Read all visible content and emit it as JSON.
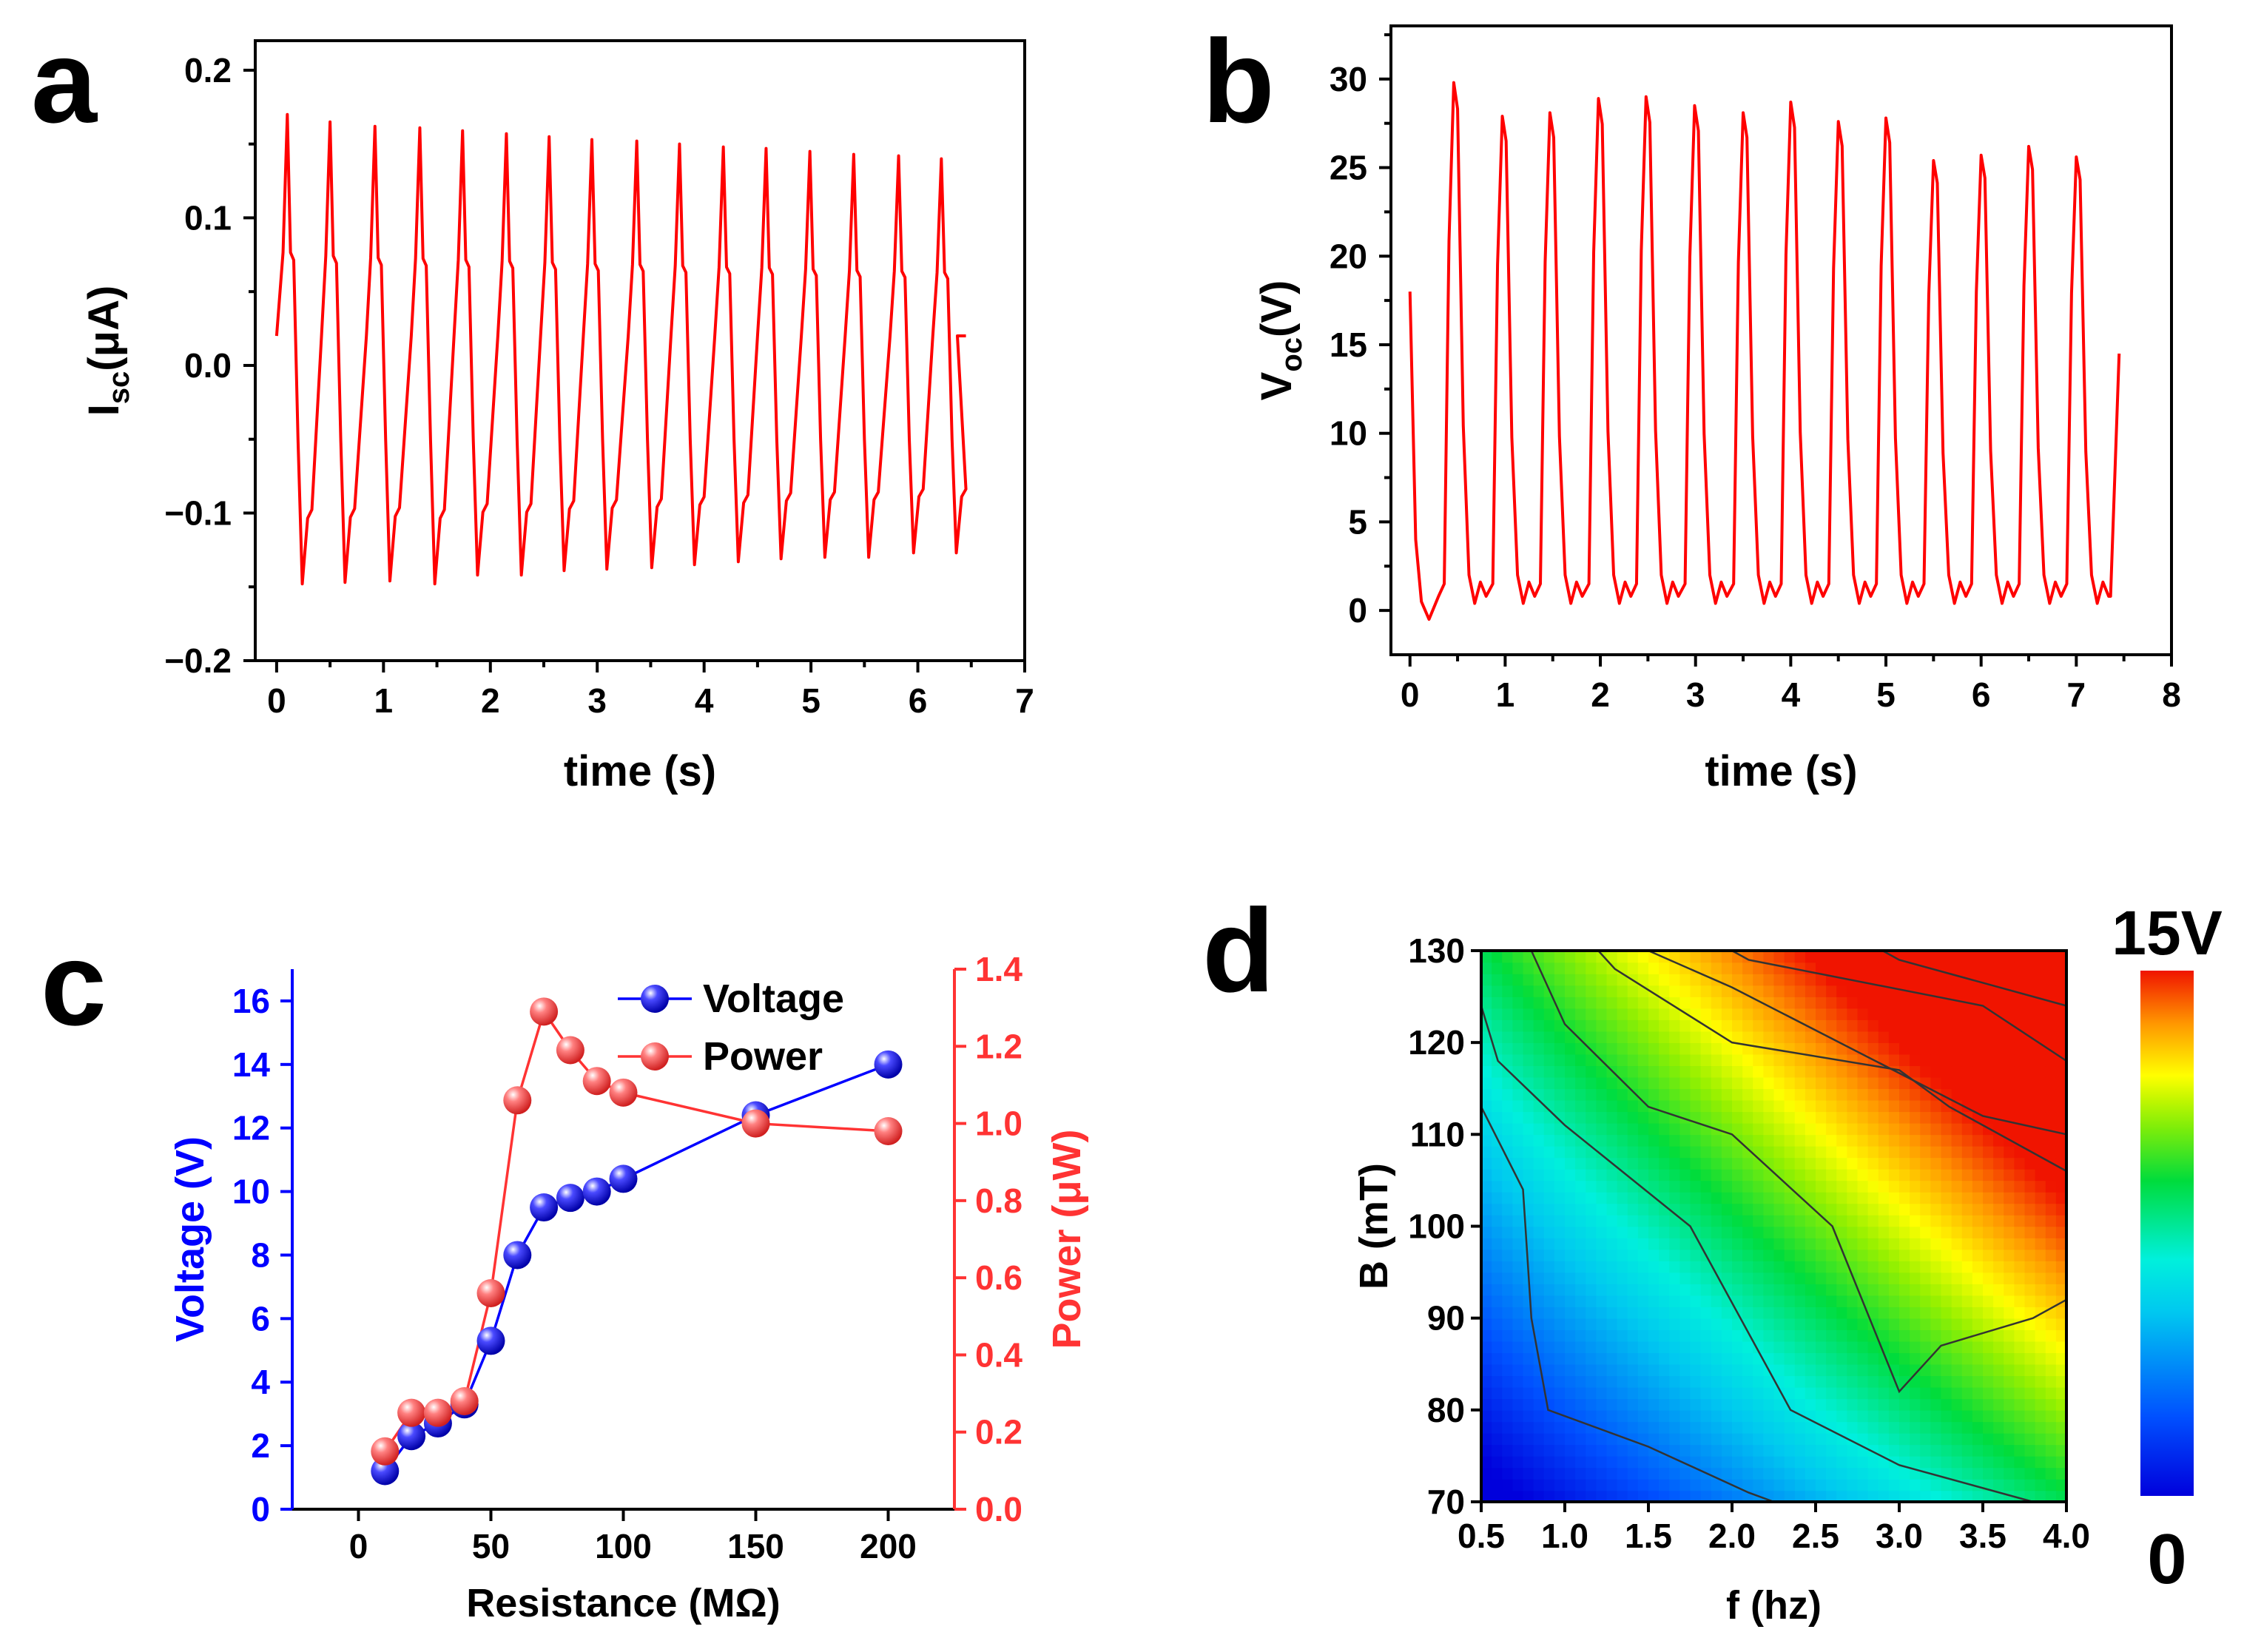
{
  "panels": {
    "a": "a",
    "b": "b",
    "c": "c",
    "d": "d"
  },
  "chart_data": [
    {
      "id": "a",
      "type": "line",
      "xlabel": "time (s)",
      "ylabel_main": "I",
      "ylabel_sub": "sc",
      "ylabel_unit": "(μA)",
      "xlim": [
        -0.2,
        7
      ],
      "ylim": [
        -0.2,
        0.22
      ],
      "xticks": [
        "0",
        "1",
        "2",
        "3",
        "4",
        "5",
        "6",
        "7"
      ],
      "yticks": [
        "−0.2",
        "−0.1",
        "0.0",
        "0.1",
        "0.2"
      ],
      "ytick_values": [
        -0.2,
        -0.1,
        0.0,
        0.1,
        0.2
      ],
      "color": "#ff0000",
      "peaks": [
        {
          "t": 0.1,
          "max": 0.17,
          "min": -0.148
        },
        {
          "t": 0.5,
          "max": 0.165,
          "min": -0.147
        },
        {
          "t": 0.92,
          "max": 0.162,
          "min": -0.146
        },
        {
          "t": 1.34,
          "max": 0.161,
          "min": -0.148
        },
        {
          "t": 1.74,
          "max": 0.159,
          "min": -0.142
        },
        {
          "t": 2.15,
          "max": 0.157,
          "min": -0.142
        },
        {
          "t": 2.55,
          "max": 0.155,
          "min": -0.139
        },
        {
          "t": 2.95,
          "max": 0.153,
          "min": -0.138
        },
        {
          "t": 3.37,
          "max": 0.152,
          "min": -0.137
        },
        {
          "t": 3.77,
          "max": 0.15,
          "min": -0.135
        },
        {
          "t": 4.18,
          "max": 0.148,
          "min": -0.133
        },
        {
          "t": 4.58,
          "max": 0.147,
          "min": -0.131
        },
        {
          "t": 4.99,
          "max": 0.145,
          "min": -0.13
        },
        {
          "t": 5.4,
          "max": 0.143,
          "min": -0.13
        },
        {
          "t": 5.82,
          "max": 0.142,
          "min": -0.127
        },
        {
          "t": 6.22,
          "max": 0.14,
          "min": -0.127
        }
      ],
      "start": 0.02,
      "end_t": 6.45,
      "end_v": 0.02
    },
    {
      "id": "b",
      "type": "line",
      "xlabel": "time (s)",
      "ylabel_main": "V",
      "ylabel_sub": "oc",
      "ylabel_unit": "(V)",
      "xlim": [
        -0.2,
        8
      ],
      "ylim": [
        -2.5,
        33
      ],
      "xticks": [
        "0",
        "1",
        "2",
        "3",
        "4",
        "5",
        "6",
        "7",
        "8"
      ],
      "yticks": [
        "0",
        "5",
        "10",
        "15",
        "20",
        "25",
        "30"
      ],
      "ytick_values": [
        0,
        5,
        10,
        15,
        20,
        25,
        30
      ],
      "color": "#ff0000",
      "peaks": [
        29.8,
        27.9,
        28.1,
        28.9,
        29.0,
        28.5,
        28.1,
        28.7,
        27.6,
        27.8,
        25.4,
        25.7,
        26.2,
        25.6
      ],
      "peak_times": [
        0.46,
        0.97,
        1.47,
        1.98,
        2.48,
        2.99,
        3.5,
        4.0,
        4.5,
        5.0,
        5.5,
        6.0,
        6.5,
        7.0
      ],
      "start": 18,
      "end_t": 7.45,
      "end_v": 14.5
    },
    {
      "id": "c",
      "type": "line",
      "xlabel": "Resistance (MΩ)",
      "ylabel_left": "Voltage (V)",
      "ylabel_right": "Power (μW)",
      "xlim": [
        -25,
        225
      ],
      "ylim_left": [
        0,
        17
      ],
      "ylim_right": [
        0,
        1.4
      ],
      "xticks": [
        "0",
        "50",
        "100",
        "150",
        "200"
      ],
      "xtick_values": [
        0,
        50,
        100,
        150,
        200
      ],
      "yticks_left": [
        "0",
        "2",
        "4",
        "6",
        "8",
        "10",
        "12",
        "14",
        "16"
      ],
      "ytick_values_left": [
        0,
        2,
        4,
        6,
        8,
        10,
        12,
        14,
        16
      ],
      "yticks_right": [
        "0.0",
        "0.2",
        "0.4",
        "0.6",
        "0.8",
        "1.0",
        "1.2",
        "1.4"
      ],
      "ytick_values_right": [
        0,
        0.2,
        0.4,
        0.6,
        0.8,
        1.0,
        1.2,
        1.4
      ],
      "legend": [
        "Voltage",
        "Power"
      ],
      "x": [
        10,
        20,
        30,
        40,
        50,
        60,
        70,
        80,
        90,
        100,
        150,
        200
      ],
      "series": [
        {
          "name": "Voltage",
          "color": "#0000ff",
          "values": [
            1.2,
            2.3,
            2.7,
            3.3,
            5.3,
            8.0,
            9.5,
            9.8,
            10.0,
            10.4,
            12.4,
            14.0
          ]
        },
        {
          "name": "Power",
          "color": "#ff3333",
          "values": [
            0.15,
            0.25,
            0.25,
            0.28,
            0.56,
            1.06,
            1.29,
            1.19,
            1.11,
            1.08,
            1.0,
            0.98
          ]
        }
      ]
    },
    {
      "id": "d",
      "type": "heatmap",
      "xlabel": "f (hz)",
      "ylabel": "B (mT)",
      "xlim": [
        0.5,
        4.0
      ],
      "ylim": [
        70,
        130
      ],
      "xticks": [
        "0.5",
        "1.0",
        "1.5",
        "2.0",
        "2.5",
        "3.0",
        "3.5",
        "4.0"
      ],
      "xtick_values": [
        0.5,
        1.0,
        1.5,
        2.0,
        2.5,
        3.0,
        3.5,
        4.0
      ],
      "yticks": [
        "70",
        "80",
        "90",
        "100",
        "110",
        "120",
        "130"
      ],
      "ytick_values": [
        70,
        80,
        90,
        100,
        110,
        120,
        130
      ],
      "colorbar_max": "15V",
      "colorbar_min": "0",
      "contours": [
        [
          [
            0.5,
            113
          ],
          [
            0.75,
            104
          ],
          [
            0.8,
            90
          ],
          [
            0.9,
            80
          ],
          [
            1.5,
            76
          ],
          [
            2.1,
            71
          ],
          [
            2.25,
            70
          ]
        ],
        [
          [
            0.5,
            124
          ],
          [
            0.6,
            118
          ],
          [
            1.0,
            111
          ],
          [
            1.75,
            100
          ],
          [
            2.35,
            80
          ],
          [
            3.0,
            74
          ],
          [
            3.8,
            70
          ]
        ],
        [
          [
            0.8,
            130
          ],
          [
            1.0,
            122
          ],
          [
            1.5,
            113
          ],
          [
            2.0,
            110
          ],
          [
            2.6,
            100
          ],
          [
            3.0,
            82
          ],
          [
            3.25,
            87
          ],
          [
            3.8,
            90
          ],
          [
            4.0,
            92
          ]
        ],
        [
          [
            1.2,
            130
          ],
          [
            1.3,
            128
          ],
          [
            2.0,
            120
          ],
          [
            3.0,
            117
          ],
          [
            3.3,
            113
          ],
          [
            4.0,
            106
          ]
        ],
        [
          [
            1.5,
            130
          ],
          [
            2.0,
            126
          ],
          [
            3.5,
            112
          ],
          [
            4.0,
            110
          ]
        ],
        [
          [
            2.0,
            130
          ],
          [
            2.1,
            129
          ],
          [
            3.5,
            124
          ],
          [
            4.0,
            118
          ]
        ],
        [
          [
            2.9,
            130
          ],
          [
            3.0,
            129
          ],
          [
            3.4,
            127
          ],
          [
            4.0,
            124
          ]
        ]
      ],
      "color_field": "V(f,B) approx 0.5 + 14 * ((f-0.5)/3.5 * 0.55 + (B-70)/60 * 0.55) clipped"
    }
  ]
}
